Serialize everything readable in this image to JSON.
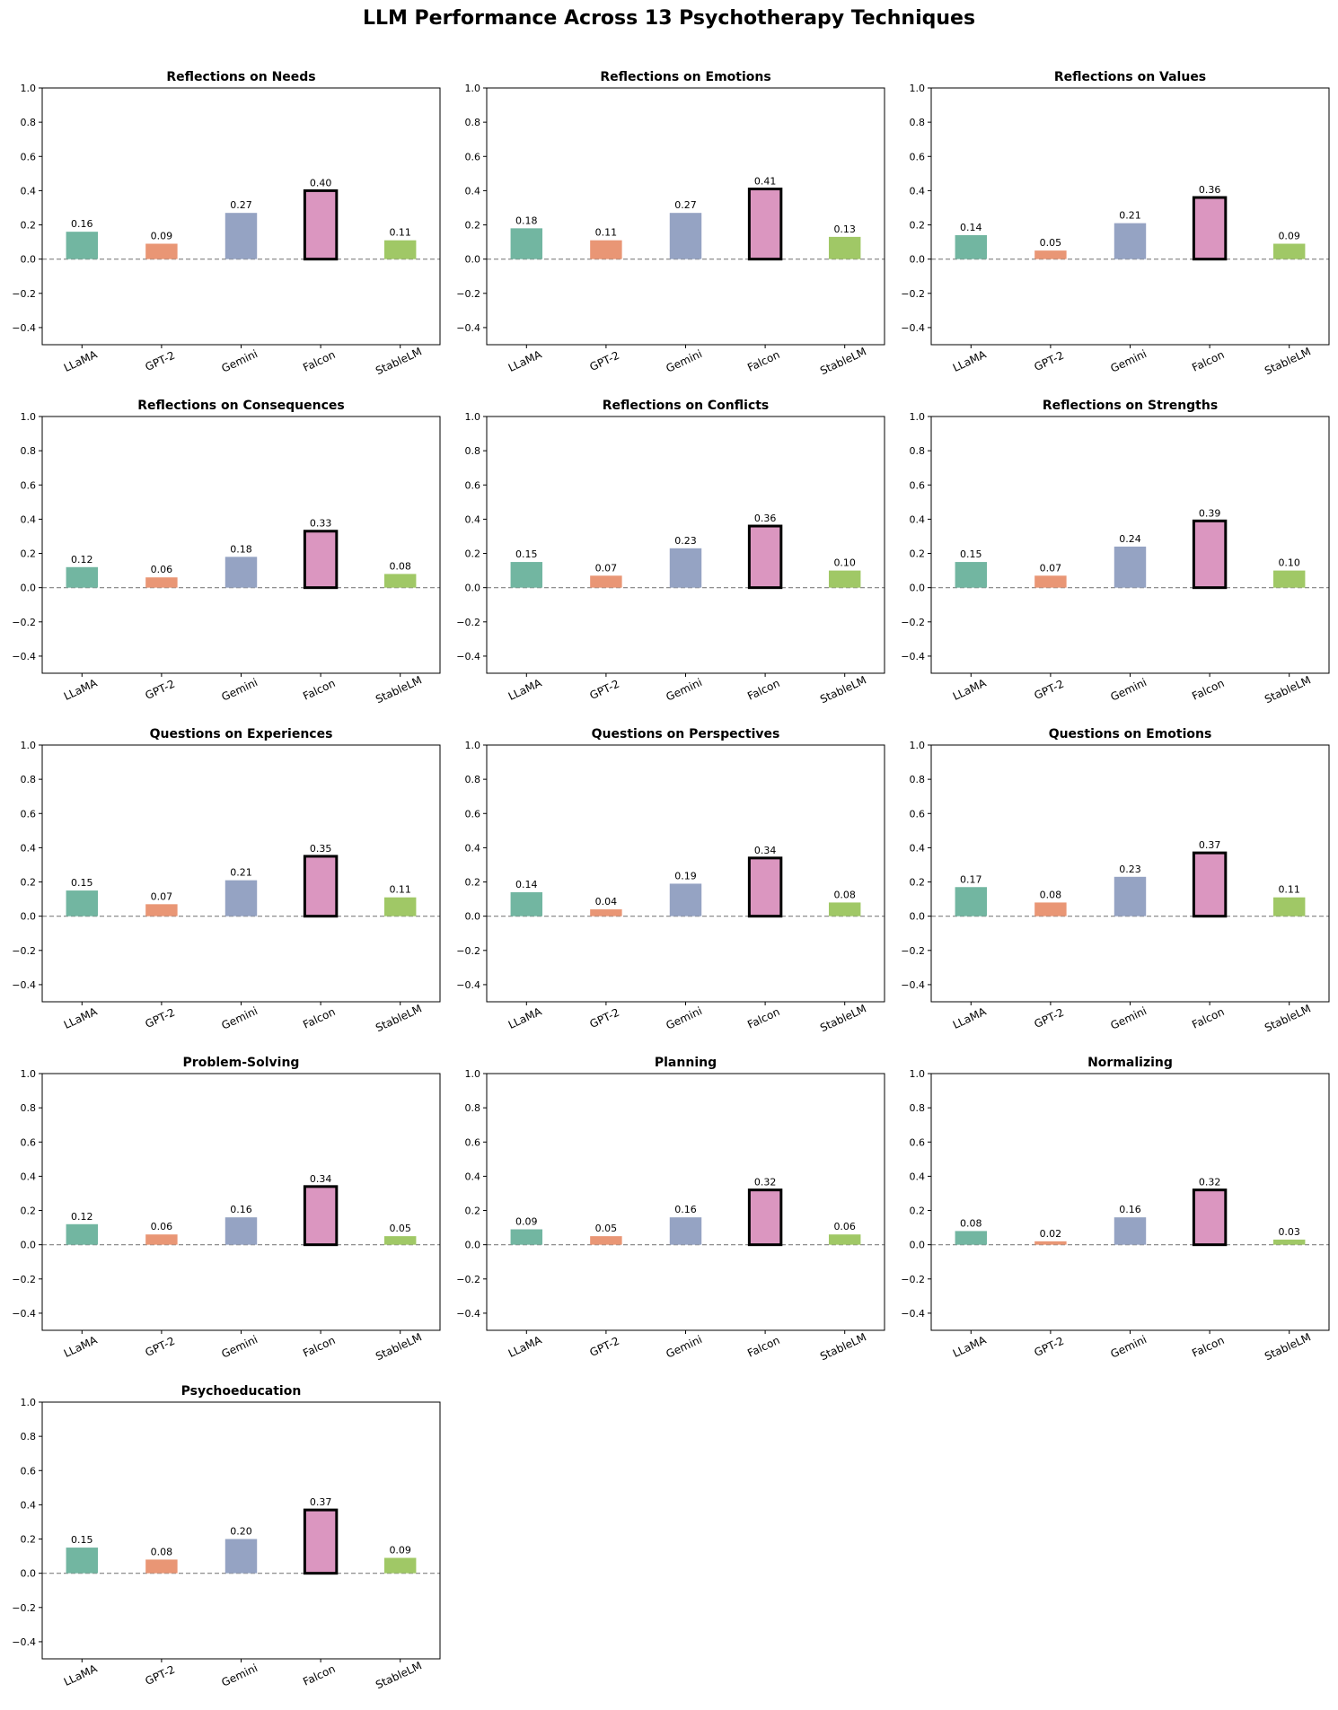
{
  "title": "LLM Performance Across 13 Psychotherapy Techniques",
  "colors": {
    "LLaMA": "#72b6a1",
    "GPT-2": "#e99675",
    "Gemini": "#95a3c3",
    "Falcon": "#db96c0",
    "StableLM": "#a0c866",
    "highlight_edge": "#000000",
    "zero_line": "#808080"
  },
  "chart_data": [
    {
      "type": "bar",
      "title": "Reflections on Needs",
      "categories": [
        "LLaMA",
        "GPT-2",
        "Gemini",
        "Falcon",
        "StableLM"
      ],
      "values": [
        0.16,
        0.09,
        0.27,
        0.4,
        0.11
      ],
      "value_labels": [
        "0.16",
        "0.09",
        "0.27",
        "0.40",
        "0.11"
      ],
      "highlight": "Falcon",
      "ylim": [
        -0.5,
        1.0
      ],
      "yticks": [
        "−0.4",
        "−0.2",
        "0.0",
        "0.2",
        "0.4",
        "0.6",
        "0.8",
        "1.0"
      ],
      "zero_line": "dashed",
      "grid": false
    },
    {
      "type": "bar",
      "title": "Reflections on Emotions",
      "categories": [
        "LLaMA",
        "GPT-2",
        "Gemini",
        "Falcon",
        "StableLM"
      ],
      "values": [
        0.18,
        0.11,
        0.27,
        0.41,
        0.13
      ],
      "value_labels": [
        "0.18",
        "0.11",
        "0.27",
        "0.41",
        "0.13"
      ],
      "highlight": "Falcon",
      "ylim": [
        -0.5,
        1.0
      ],
      "yticks": [
        "−0.4",
        "−0.2",
        "0.0",
        "0.2",
        "0.4",
        "0.6",
        "0.8",
        "1.0"
      ],
      "zero_line": "dashed",
      "grid": false
    },
    {
      "type": "bar",
      "title": "Reflections on Values",
      "categories": [
        "LLaMA",
        "GPT-2",
        "Gemini",
        "Falcon",
        "StableLM"
      ],
      "values": [
        0.14,
        0.05,
        0.21,
        0.36,
        0.09
      ],
      "value_labels": [
        "0.14",
        "0.05",
        "0.21",
        "0.36",
        "0.09"
      ],
      "highlight": "Falcon",
      "ylim": [
        -0.5,
        1.0
      ],
      "yticks": [
        "−0.4",
        "−0.2",
        "0.0",
        "0.2",
        "0.4",
        "0.6",
        "0.8",
        "1.0"
      ],
      "zero_line": "dashed",
      "grid": false
    },
    {
      "type": "bar",
      "title": "Reflections on Consequences",
      "categories": [
        "LLaMA",
        "GPT-2",
        "Gemini",
        "Falcon",
        "StableLM"
      ],
      "values": [
        0.12,
        0.06,
        0.18,
        0.33,
        0.08
      ],
      "value_labels": [
        "0.12",
        "0.06",
        "0.18",
        "0.33",
        "0.08"
      ],
      "highlight": "Falcon",
      "ylim": [
        -0.5,
        1.0
      ],
      "yticks": [
        "−0.4",
        "−0.2",
        "0.0",
        "0.2",
        "0.4",
        "0.6",
        "0.8",
        "1.0"
      ],
      "zero_line": "dashed",
      "grid": false
    },
    {
      "type": "bar",
      "title": "Reflections on Conflicts",
      "categories": [
        "LLaMA",
        "GPT-2",
        "Gemini",
        "Falcon",
        "StableLM"
      ],
      "values": [
        0.15,
        0.07,
        0.23,
        0.36,
        0.1
      ],
      "value_labels": [
        "0.15",
        "0.07",
        "0.23",
        "0.36",
        "0.10"
      ],
      "highlight": "Falcon",
      "ylim": [
        -0.5,
        1.0
      ],
      "yticks": [
        "−0.4",
        "−0.2",
        "0.0",
        "0.2",
        "0.4",
        "0.6",
        "0.8",
        "1.0"
      ],
      "zero_line": "dashed",
      "grid": false
    },
    {
      "type": "bar",
      "title": "Reflections on Strengths",
      "categories": [
        "LLaMA",
        "GPT-2",
        "Gemini",
        "Falcon",
        "StableLM"
      ],
      "values": [
        0.15,
        0.07,
        0.24,
        0.39,
        0.1
      ],
      "value_labels": [
        "0.15",
        "0.07",
        "0.24",
        "0.39",
        "0.10"
      ],
      "highlight": "Falcon",
      "ylim": [
        -0.5,
        1.0
      ],
      "yticks": [
        "−0.4",
        "−0.2",
        "0.0",
        "0.2",
        "0.4",
        "0.6",
        "0.8",
        "1.0"
      ],
      "zero_line": "dashed",
      "grid": false
    },
    {
      "type": "bar",
      "title": "Questions on Experiences",
      "categories": [
        "LLaMA",
        "GPT-2",
        "Gemini",
        "Falcon",
        "StableLM"
      ],
      "values": [
        0.15,
        0.07,
        0.21,
        0.35,
        0.11
      ],
      "value_labels": [
        "0.15",
        "0.07",
        "0.21",
        "0.35",
        "0.11"
      ],
      "highlight": "Falcon",
      "ylim": [
        -0.5,
        1.0
      ],
      "yticks": [
        "−0.4",
        "−0.2",
        "0.0",
        "0.2",
        "0.4",
        "0.6",
        "0.8",
        "1.0"
      ],
      "zero_line": "dashed",
      "grid": false
    },
    {
      "type": "bar",
      "title": "Questions on Perspectives",
      "categories": [
        "LLaMA",
        "GPT-2",
        "Gemini",
        "Falcon",
        "StableLM"
      ],
      "values": [
        0.14,
        0.04,
        0.19,
        0.34,
        0.08
      ],
      "value_labels": [
        "0.14",
        "0.04",
        "0.19",
        "0.34",
        "0.08"
      ],
      "highlight": "Falcon",
      "ylim": [
        -0.5,
        1.0
      ],
      "yticks": [
        "−0.4",
        "−0.2",
        "0.0",
        "0.2",
        "0.4",
        "0.6",
        "0.8",
        "1.0"
      ],
      "zero_line": "dashed",
      "grid": false
    },
    {
      "type": "bar",
      "title": "Questions on Emotions",
      "categories": [
        "LLaMA",
        "GPT-2",
        "Gemini",
        "Falcon",
        "StableLM"
      ],
      "values": [
        0.17,
        0.08,
        0.23,
        0.37,
        0.11
      ],
      "value_labels": [
        "0.17",
        "0.08",
        "0.23",
        "0.37",
        "0.11"
      ],
      "highlight": "Falcon",
      "ylim": [
        -0.5,
        1.0
      ],
      "yticks": [
        "−0.4",
        "−0.2",
        "0.0",
        "0.2",
        "0.4",
        "0.6",
        "0.8",
        "1.0"
      ],
      "zero_line": "dashed",
      "grid": false
    },
    {
      "type": "bar",
      "title": "Problem-Solving",
      "categories": [
        "LLaMA",
        "GPT-2",
        "Gemini",
        "Falcon",
        "StableLM"
      ],
      "values": [
        0.12,
        0.06,
        0.16,
        0.34,
        0.05
      ],
      "value_labels": [
        "0.12",
        "0.06",
        "0.16",
        "0.34",
        "0.05"
      ],
      "highlight": "Falcon",
      "ylim": [
        -0.5,
        1.0
      ],
      "yticks": [
        "−0.4",
        "−0.2",
        "0.0",
        "0.2",
        "0.4",
        "0.6",
        "0.8",
        "1.0"
      ],
      "zero_line": "dashed",
      "grid": false
    },
    {
      "type": "bar",
      "title": "Planning",
      "categories": [
        "LLaMA",
        "GPT-2",
        "Gemini",
        "Falcon",
        "StableLM"
      ],
      "values": [
        0.09,
        0.05,
        0.16,
        0.32,
        0.06
      ],
      "value_labels": [
        "0.09",
        "0.05",
        "0.16",
        "0.32",
        "0.06"
      ],
      "highlight": "Falcon",
      "ylim": [
        -0.5,
        1.0
      ],
      "yticks": [
        "−0.4",
        "−0.2",
        "0.0",
        "0.2",
        "0.4",
        "0.6",
        "0.8",
        "1.0"
      ],
      "zero_line": "dashed",
      "grid": false
    },
    {
      "type": "bar",
      "title": "Normalizing",
      "categories": [
        "LLaMA",
        "GPT-2",
        "Gemini",
        "Falcon",
        "StableLM"
      ],
      "values": [
        0.08,
        0.02,
        0.16,
        0.32,
        0.03
      ],
      "value_labels": [
        "0.08",
        "0.02",
        "0.16",
        "0.32",
        "0.03"
      ],
      "highlight": "Falcon",
      "ylim": [
        -0.5,
        1.0
      ],
      "yticks": [
        "−0.4",
        "−0.2",
        "0.0",
        "0.2",
        "0.4",
        "0.6",
        "0.8",
        "1.0"
      ],
      "zero_line": "dashed",
      "grid": false
    },
    {
      "type": "bar",
      "title": "Psychoeducation",
      "categories": [
        "LLaMA",
        "GPT-2",
        "Gemini",
        "Falcon",
        "StableLM"
      ],
      "values": [
        0.15,
        0.08,
        0.2,
        0.37,
        0.09
      ],
      "value_labels": [
        "0.15",
        "0.08",
        "0.20",
        "0.37",
        "0.09"
      ],
      "highlight": "Falcon",
      "ylim": [
        -0.5,
        1.0
      ],
      "yticks": [
        "−0.4",
        "−0.2",
        "0.0",
        "0.2",
        "0.4",
        "0.6",
        "0.8",
        "1.0"
      ],
      "zero_line": "dashed",
      "grid": false
    }
  ]
}
